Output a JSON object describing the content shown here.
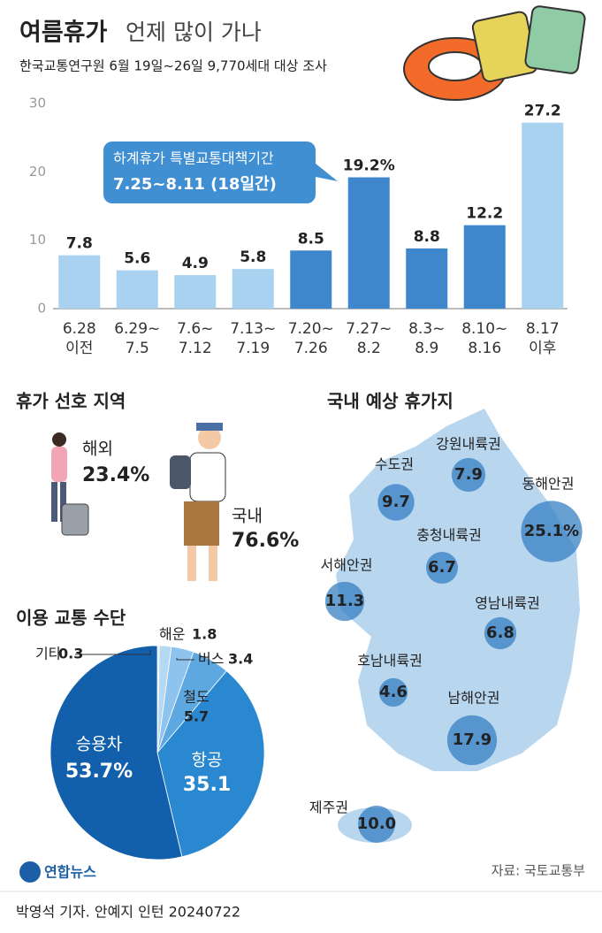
{
  "header": {
    "title": "여름휴가",
    "title_rest": "언제 많이 가나",
    "subtitle": "한국교통연구원 6월 19일~26일 9,770세대 대상 조사"
  },
  "chart_data": [
    {
      "type": "bar",
      "categories": [
        "6.28\n이전",
        "6.29~\n7.5",
        "7.6~\n7.12",
        "7.13~\n7.19",
        "7.20~\n7.26",
        "7.27~\n8.2",
        "8.3~\n8.9",
        "8.10~\n8.16",
        "8.17\n이후"
      ],
      "values": [
        7.8,
        5.6,
        4.9,
        5.8,
        8.5,
        19.2,
        8.8,
        12.2,
        27.2
      ],
      "value_labels": [
        "7.8",
        "5.6",
        "4.9",
        "5.8",
        "8.5",
        "19.2%",
        "8.8",
        "12.2",
        "27.2"
      ],
      "colors": [
        "#a9d1f0",
        "#a9d1f0",
        "#a9d1f0",
        "#a9d1f0",
        "#3e87cc",
        "#3e87cc",
        "#3e87cc",
        "#3e87cc",
        "#a9d1f0"
      ],
      "ylim": [
        0,
        30
      ],
      "yticks": [
        0,
        10,
        20,
        30
      ],
      "annotation": [
        "하계휴가 특별교통대책기간",
        "7.25~8.11 (18일간)"
      ]
    },
    {
      "type": "pie",
      "title": "이용 교통 수단",
      "categories": [
        "기타",
        "해운",
        "버스",
        "철도",
        "항공",
        "승용차"
      ],
      "values": [
        0.3,
        1.8,
        3.4,
        5.7,
        35.1,
        53.7
      ],
      "value_labels": [
        "0.3",
        "1.8",
        "3.4",
        "5.7",
        "35.1",
        "53.7%"
      ],
      "colors": [
        "#d9ecf9",
        "#b5d9f3",
        "#8dc3ec",
        "#5ea8e1",
        "#2a88d0",
        "#125fab"
      ]
    },
    {
      "type": "bubble",
      "title": "국내 예상 휴가지",
      "categories": [
        "강원내륙권",
        "수도권",
        "동해안권",
        "충청내륙권",
        "서해안권",
        "영남내륙권",
        "호남내륙권",
        "남해안권",
        "제주권"
      ],
      "values": [
        7.9,
        9.7,
        25.1,
        6.7,
        11.3,
        6.8,
        4.6,
        17.9,
        10.0
      ],
      "value_labels": [
        "7.9",
        "9.7",
        "25.1%",
        "6.7",
        "11.3",
        "6.8",
        "4.6",
        "17.9",
        "10.0"
      ],
      "color": "#2f7cc0"
    }
  ],
  "preference": {
    "title": "휴가 선호 지역",
    "items": [
      {
        "name": "해외",
        "value": "23.4%"
      },
      {
        "name": "국내",
        "value": "76.6%"
      }
    ]
  },
  "logo": "연합뉴스",
  "source": "자료: 국토교통부",
  "credit": "박영석 기자. 안예지 인턴  20240722"
}
